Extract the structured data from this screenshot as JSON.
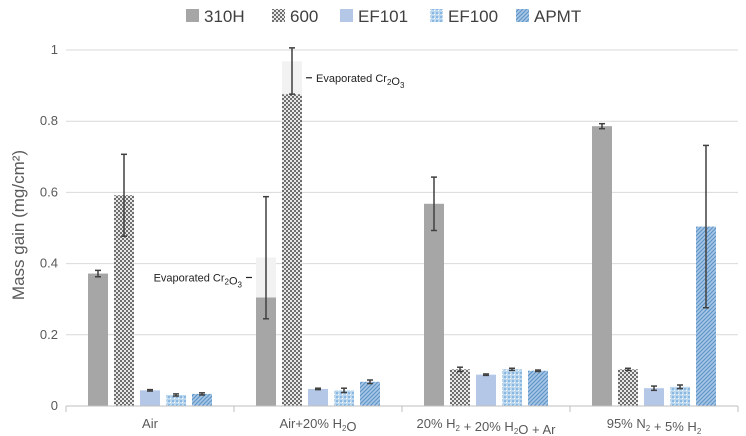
{
  "chart_data": {
    "type": "bar",
    "ylabel": "Mass gain (mg/cm²)",
    "ylim": [
      0,
      1
    ],
    "yticks": [
      0,
      0.2,
      0.4,
      0.6,
      0.8,
      1
    ],
    "ytick_labels": [
      "0",
      "0.2",
      "0.4",
      "0.6",
      "0.8",
      "1"
    ],
    "grid": true,
    "legend_position": "top",
    "categories": [
      {
        "parts": [
          [
            "Air",
            "n"
          ]
        ]
      },
      {
        "parts": [
          [
            "Air+20% H",
            "n"
          ],
          [
            "2",
            "sub"
          ],
          [
            "O",
            "n"
          ]
        ]
      },
      {
        "parts": [
          [
            "20% H",
            "n"
          ],
          [
            "2",
            "sub"
          ],
          [
            " + 20% H",
            "n"
          ],
          [
            "2",
            "sub"
          ],
          [
            "O + Ar",
            "n"
          ]
        ]
      },
      {
        "parts": [
          [
            "95% N",
            "n"
          ],
          [
            "2",
            "sub"
          ],
          [
            " + 5% H",
            "n"
          ],
          [
            "2",
            "sub"
          ]
        ]
      }
    ],
    "series": [
      {
        "name": "310H",
        "color": "#a6a6a6",
        "pattern": "solid",
        "values": [
          0.372,
          0.305,
          0.568,
          0.786
        ],
        "err_low": [
          0.363,
          0.245,
          0.493,
          0.779
        ],
        "err_high": [
          0.381,
          0.588,
          0.643,
          0.793
        ]
      },
      {
        "name": "600",
        "color": "#9a9a9a",
        "pattern": "checker",
        "values": [
          0.592,
          0.876,
          0.103,
          0.103
        ],
        "err_low": [
          0.477,
          0.876,
          0.097,
          0.1
        ],
        "err_high": [
          0.707,
          1.006,
          0.109,
          0.106
        ]
      },
      {
        "name": "EF101",
        "color": "#b4c7e7",
        "pattern": "solid",
        "values": [
          0.044,
          0.048,
          0.088,
          0.05
        ],
        "err_low": [
          0.042,
          0.046,
          0.086,
          0.044
        ],
        "err_high": [
          0.046,
          0.05,
          0.09,
          0.056
        ]
      },
      {
        "name": "EF100",
        "color": "#9dc3e6",
        "pattern": "dots",
        "values": [
          0.031,
          0.044,
          0.103,
          0.054
        ],
        "err_low": [
          0.028,
          0.038,
          0.1,
          0.049
        ],
        "err_high": [
          0.034,
          0.05,
          0.106,
          0.059
        ]
      },
      {
        "name": "APMT",
        "color": "#8fb4da",
        "pattern": "diag",
        "values": [
          0.034,
          0.068,
          0.099,
          0.504
        ],
        "err_low": [
          0.031,
          0.063,
          0.097,
          0.276
        ],
        "err_high": [
          0.037,
          0.073,
          0.101,
          0.732
        ]
      }
    ],
    "evaporated": [
      {
        "series": 0,
        "category": 1,
        "from": 0.305,
        "to": 0.417,
        "label_side": "left"
      },
      {
        "series": 1,
        "category": 1,
        "from": 0.876,
        "to": 0.968,
        "label_side": "right"
      }
    ],
    "annotation_parts": [
      [
        "Evaporated Cr",
        "n"
      ],
      [
        "2",
        "sub"
      ],
      [
        "O",
        "n"
      ],
      [
        "3",
        "sub"
      ]
    ]
  }
}
